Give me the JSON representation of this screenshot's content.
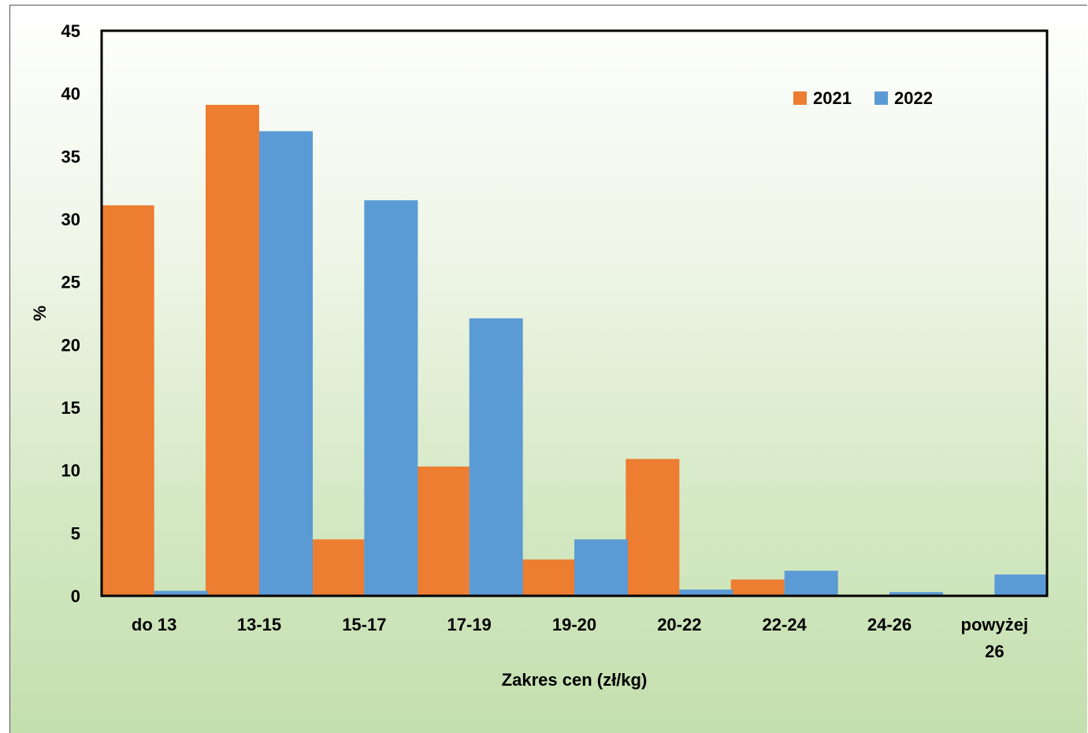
{
  "chart_data": {
    "type": "bar",
    "categories": [
      "do 13",
      "13-15",
      "15-17",
      "17-19",
      "19-20",
      "20-22",
      "22-24",
      "24-26",
      "powyżej 26"
    ],
    "series": [
      {
        "name": "2021",
        "color": "#ED7D31",
        "values": [
          31.1,
          39.1,
          4.5,
          10.3,
          2.9,
          10.9,
          1.3,
          0,
          0
        ]
      },
      {
        "name": "2022",
        "color": "#5B9BD5",
        "values": [
          0.4,
          37.0,
          31.5,
          22.1,
          4.5,
          0.5,
          2.0,
          0.3,
          1.7
        ]
      }
    ],
    "title": "",
    "xlabel": "Zakres cen (zł/kg)",
    "ylabel": "%",
    "ylim": [
      0,
      45
    ],
    "yticks": [
      0,
      5,
      10,
      15,
      20,
      25,
      30,
      35,
      40,
      45
    ],
    "grid": false,
    "legend_position": "top-right"
  }
}
